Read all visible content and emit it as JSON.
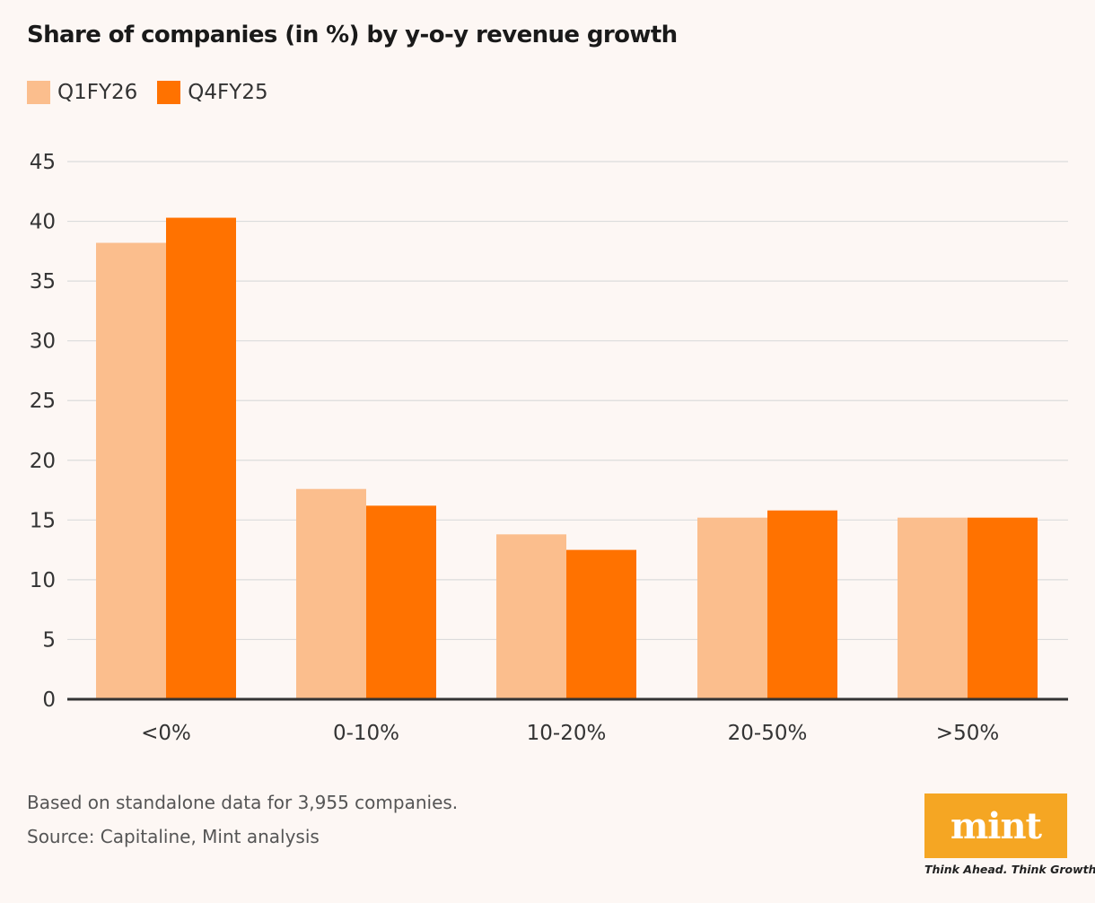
{
  "chart_data": {
    "type": "bar",
    "title": "Share of companies (in %) by y-o-y revenue growth",
    "categories": [
      "<0%",
      "0-10%",
      "10-20%",
      "20-50%",
      ">50%"
    ],
    "series": [
      {
        "name": "Q1FY26",
        "values": [
          38.2,
          17.6,
          13.8,
          15.2,
          15.2
        ]
      },
      {
        "name": "Q4FY25",
        "values": [
          40.3,
          16.2,
          12.5,
          15.8,
          15.2
        ]
      }
    ],
    "xlabel": "",
    "ylabel": "",
    "ylim": [
      0,
      45
    ],
    "yticks": [
      0,
      5,
      10,
      15,
      20,
      25,
      30,
      35,
      40,
      45
    ],
    "grid": true,
    "legend_position": "top-left"
  },
  "colors": {
    "Q1FY26": "#fbbe8d",
    "Q4FY25": "#ff7200",
    "gridline": "#dcdcdc",
    "axis": "#333333"
  },
  "legend": {
    "q1fy26_label": "Q1FY26",
    "q4fy25_label": "Q4FY25"
  },
  "footer": {
    "note": "Based on standalone data for 3,955 companies.",
    "source": "Source: Capitaline, Mint analysis"
  },
  "logo": {
    "text": "mint",
    "tagline": "Think Ahead. Think Growth."
  }
}
